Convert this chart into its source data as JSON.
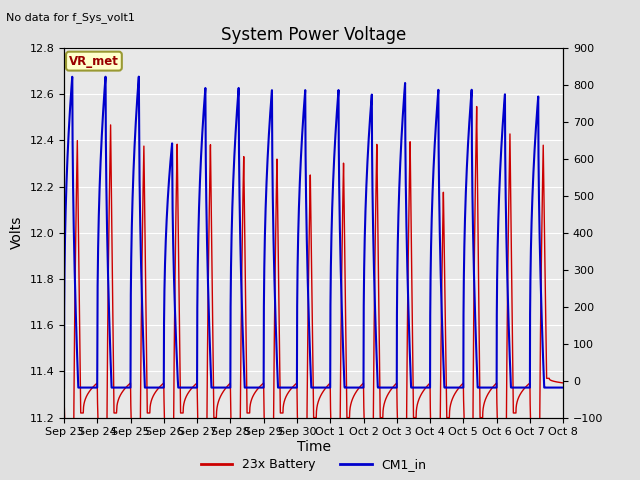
{
  "title": "System Power Voltage",
  "no_data_label": "No data for f_Sys_volt1",
  "vr_met_label": "VR_met",
  "xlabel": "Time",
  "ylabel": "Volts",
  "ylim_left": [
    11.2,
    12.8
  ],
  "ylim_right": [
    -100,
    900
  ],
  "yticks_left": [
    11.2,
    11.4,
    11.6,
    11.8,
    12.0,
    12.2,
    12.4,
    12.6,
    12.8
  ],
  "yticks_right": [
    -100,
    0,
    100,
    200,
    300,
    400,
    500,
    600,
    700,
    800,
    900
  ],
  "background_color": "#e0e0e0",
  "plot_bg_color": "#e8e8e8",
  "grid_color": "#ffffff",
  "red_color": "#cc0000",
  "blue_color": "#0000cc",
  "legend_entries": [
    "23x Battery",
    "CM1_in"
  ],
  "x_tick_labels": [
    "Sep 23",
    "Sep 24",
    "Sep 25",
    "Sep 26",
    "Sep 27",
    "Sep 28",
    "Sep 29",
    "Sep 30",
    "Oct 1",
    "Oct 2",
    "Oct 3",
    "Oct 4",
    "Oct 5",
    "Oct 6",
    "Oct 7",
    "Oct 8"
  ],
  "n_days": 15,
  "red_peaks": [
    12.4,
    12.47,
    12.38,
    12.39,
    12.39,
    12.34,
    12.33,
    12.26,
    12.31,
    12.39,
    12.4,
    12.18,
    12.55,
    12.43,
    12.38
  ],
  "red_troughs": [
    11.22,
    11.22,
    11.22,
    11.22,
    11.2,
    11.22,
    11.22,
    11.2,
    11.2,
    11.2,
    11.2,
    11.2,
    11.2,
    11.22,
    11.37
  ],
  "red_baseline": 11.35,
  "blue_peaks": [
    12.68,
    12.68,
    12.68,
    12.39,
    12.63,
    12.63,
    12.62,
    12.62,
    12.62,
    12.6,
    12.65,
    12.62,
    12.62,
    12.6,
    12.59
  ],
  "blue_baseline": 11.33
}
